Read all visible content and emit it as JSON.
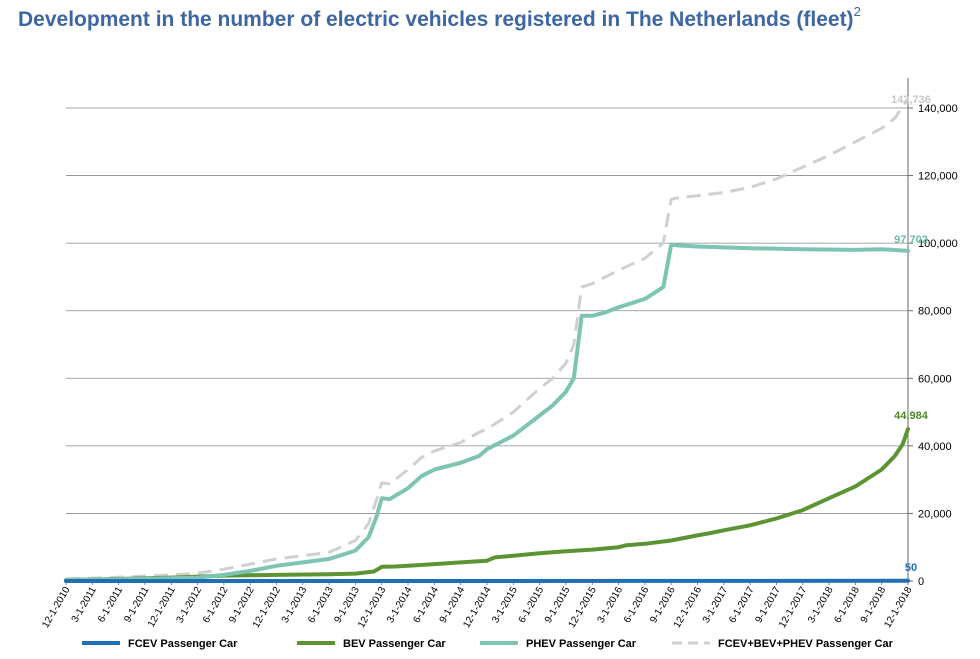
{
  "title": "Development in the number of electric vehicles registered in The Netherlands (fleet)",
  "title_superscript": "2",
  "chart_data": {
    "type": "line",
    "title": "Development in the number of electric vehicles registered in The Netherlands (fleet)",
    "xlabel": "",
    "ylabel": "",
    "ylim": [
      0,
      140000
    ],
    "y_axis_position": "right",
    "y_ticks": [
      0,
      20000,
      40000,
      60000,
      80000,
      100000,
      120000,
      140000
    ],
    "y_tick_labels": [
      "0",
      "20,000",
      "40,000",
      "60,000",
      "80,000",
      "100,000",
      "120,000",
      "140,000"
    ],
    "grid": true,
    "legend_position": "bottom",
    "x_tick_labels": [
      "12-1-2010",
      "3-1-2011",
      "6-1-2011",
      "9-1-2011",
      "12-1-2011",
      "3-1-2012",
      "6-1-2012",
      "9-1-2012",
      "12-1-2012",
      "3-1-2013",
      "6-1-2013",
      "9-1-2013",
      "12-1-2013",
      "3-1-2014",
      "6-1-2014",
      "9-1-2014",
      "12-1-2014",
      "3-1-2015",
      "6-1-2015",
      "9-1-2015",
      "12-1-2015",
      "3-1-2016",
      "6-1-2016",
      "9-1-2016",
      "12-1-2016",
      "3-1-2017",
      "6-1-2017",
      "9-1-2017",
      "12-1-2017",
      "3-1-2018",
      "6-1-2018",
      "9-1-2018",
      "12-1-2018"
    ],
    "series": [
      {
        "name": "FCEV Passenger Car",
        "color": "#1f6fb4",
        "style": "solid",
        "end_label": "50",
        "points": [
          [
            0,
            0
          ],
          [
            8,
            5
          ],
          [
            16,
            10
          ],
          [
            24,
            20
          ],
          [
            32,
            50
          ]
        ]
      },
      {
        "name": "BEV Passenger Car",
        "color": "#5c9434",
        "style": "solid",
        "end_label": "44,984",
        "points": [
          [
            0,
            300
          ],
          [
            2,
            600
          ],
          [
            4,
            1000
          ],
          [
            5,
            1300
          ],
          [
            6,
            1600
          ],
          [
            8,
            1800
          ],
          [
            10,
            2000
          ],
          [
            11,
            2200
          ],
          [
            11.7,
            2800
          ],
          [
            12,
            4200
          ],
          [
            12.5,
            4300
          ],
          [
            13,
            4500
          ],
          [
            14,
            5000
          ],
          [
            15,
            5500
          ],
          [
            16,
            6000
          ],
          [
            16.3,
            7000
          ],
          [
            17,
            7500
          ],
          [
            18,
            8200
          ],
          [
            19,
            8800
          ],
          [
            20,
            9300
          ],
          [
            21,
            10000
          ],
          [
            21.3,
            10600
          ],
          [
            22,
            11000
          ],
          [
            23,
            12000
          ],
          [
            24,
            13500
          ],
          [
            24.5,
            14200
          ],
          [
            25,
            15000
          ],
          [
            26,
            16500
          ],
          [
            27,
            18500
          ],
          [
            28,
            21000
          ],
          [
            29,
            24500
          ],
          [
            30,
            28000
          ],
          [
            31,
            33000
          ],
          [
            31.5,
            37000
          ],
          [
            31.8,
            40500
          ],
          [
            32,
            44984
          ]
        ]
      },
      {
        "name": "PHEV Passenger Car",
        "color": "#7ec4b3",
        "style": "solid",
        "end_label": "97,702",
        "points": [
          [
            0,
            300
          ],
          [
            2,
            500
          ],
          [
            4,
            800
          ],
          [
            5,
            1000
          ],
          [
            6,
            1800
          ],
          [
            7,
            3000
          ],
          [
            8,
            4500
          ],
          [
            9,
            5500
          ],
          [
            10,
            6500
          ],
          [
            11,
            9000
          ],
          [
            11.5,
            13000
          ],
          [
            11.8,
            19000
          ],
          [
            12,
            24500
          ],
          [
            12.3,
            24200
          ],
          [
            13,
            27500
          ],
          [
            13.5,
            31000
          ],
          [
            14,
            33000
          ],
          [
            15,
            35000
          ],
          [
            15.7,
            37000
          ],
          [
            16,
            39000
          ],
          [
            17,
            43000
          ],
          [
            18,
            49000
          ],
          [
            18.5,
            52000
          ],
          [
            19,
            56000
          ],
          [
            19.3,
            60000
          ],
          [
            19.6,
            78500
          ],
          [
            20,
            78500
          ],
          [
            20.5,
            79500
          ],
          [
            21,
            81000
          ],
          [
            22,
            83500
          ],
          [
            22.7,
            87000
          ],
          [
            23,
            99500
          ],
          [
            23.3,
            99300
          ],
          [
            24,
            99000
          ],
          [
            26,
            98500
          ],
          [
            28,
            98200
          ],
          [
            30,
            98000
          ],
          [
            31,
            98200
          ],
          [
            32,
            97702
          ]
        ]
      },
      {
        "name": "FCEV+BEV+PHEV  Passenger Car",
        "color": "#d0d0d0",
        "style": "dashed",
        "end_label": "142,736",
        "points": [
          [
            0,
            600
          ],
          [
            2,
            1100
          ],
          [
            4,
            1800
          ],
          [
            5,
            2300
          ],
          [
            6,
            3500
          ],
          [
            7,
            5000
          ],
          [
            8,
            6500
          ],
          [
            9,
            7500
          ],
          [
            10,
            8500
          ],
          [
            11,
            12000
          ],
          [
            11.5,
            17000
          ],
          [
            11.8,
            24000
          ],
          [
            12,
            29000
          ],
          [
            12.3,
            28800
          ],
          [
            13,
            33000
          ],
          [
            13.5,
            36500
          ],
          [
            14,
            38500
          ],
          [
            15,
            41000
          ],
          [
            15.7,
            44000
          ],
          [
            16,
            45000
          ],
          [
            17,
            50000
          ],
          [
            18,
            57000
          ],
          [
            18.5,
            60000
          ],
          [
            19,
            64500
          ],
          [
            19.3,
            70000
          ],
          [
            19.6,
            87000
          ],
          [
            20,
            88000
          ],
          [
            20.5,
            90000
          ],
          [
            21,
            92000
          ],
          [
            22,
            95500
          ],
          [
            22.7,
            100000
          ],
          [
            23,
            113000
          ],
          [
            23.3,
            113500
          ],
          [
            24,
            114000
          ],
          [
            25,
            115000
          ],
          [
            26,
            116500
          ],
          [
            27,
            119000
          ],
          [
            28,
            122500
          ],
          [
            29,
            126000
          ],
          [
            30,
            130000
          ],
          [
            31,
            134000
          ],
          [
            31.5,
            137000
          ],
          [
            32,
            142736
          ]
        ]
      }
    ]
  }
}
